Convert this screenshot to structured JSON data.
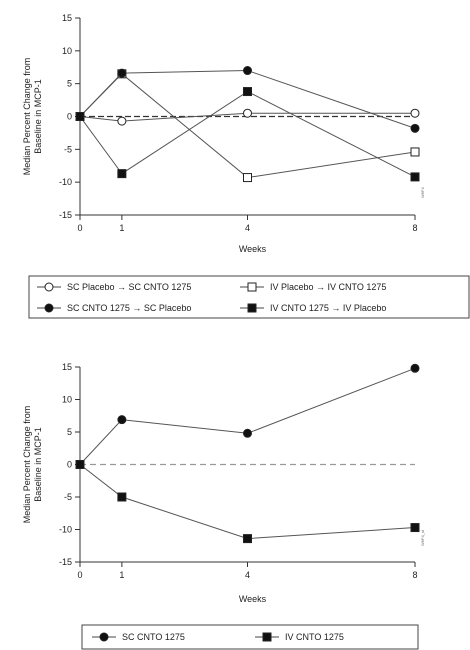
{
  "chart_data": [
    {
      "type": "line",
      "xlabel": "Weeks",
      "ylabel": "Median Percent Change from Baseline in MCP-1",
      "x": [
        0,
        1,
        4,
        8
      ],
      "xticks": [
        0,
        1,
        4,
        8
      ],
      "yticks": [
        -15,
        -10,
        -5,
        0,
        5,
        10,
        15
      ],
      "ylim": [
        -15,
        15
      ],
      "reference_line_y": 0,
      "figure_code": "W6F4",
      "legend_position": "bottom",
      "series": [
        {
          "name": "SC Placebo → SC CNTO 1275",
          "marker": "open-circle",
          "values": [
            0,
            -0.7,
            0.5,
            0.5
          ]
        },
        {
          "name": "IV Placebo → IV CNTO 1275",
          "marker": "open-square",
          "values": [
            0,
            6.5,
            -9.3,
            -5.4
          ]
        },
        {
          "name": "SC CNTO 1275 → SC Placebo",
          "marker": "filled-circle",
          "values": [
            0,
            6.6,
            7.0,
            -1.8
          ]
        },
        {
          "name": "IV CNTO 1275 → IV Placebo",
          "marker": "filled-square",
          "values": [
            0,
            -8.7,
            3.8,
            -9.2
          ]
        }
      ]
    },
    {
      "type": "line",
      "xlabel": "Weeks",
      "ylabel": "Median Percent Change from Baseline in MCP-1",
      "x": [
        0,
        1,
        4,
        8
      ],
      "xticks": [
        0,
        1,
        4,
        8
      ],
      "yticks": [
        -15,
        -10,
        -5,
        0,
        5,
        10,
        15
      ],
      "ylim": [
        -15,
        15
      ],
      "reference_line_y": 0,
      "figure_code": "W6F4_sf",
      "legend_position": "bottom",
      "series": [
        {
          "name": "SC CNTO 1275",
          "marker": "filled-circle",
          "values": [
            0,
            6.9,
            4.8,
            14.8
          ]
        },
        {
          "name": "IV CNTO 1275",
          "marker": "filled-square",
          "values": [
            0,
            -5.0,
            -11.4,
            -9.7
          ]
        }
      ]
    }
  ]
}
